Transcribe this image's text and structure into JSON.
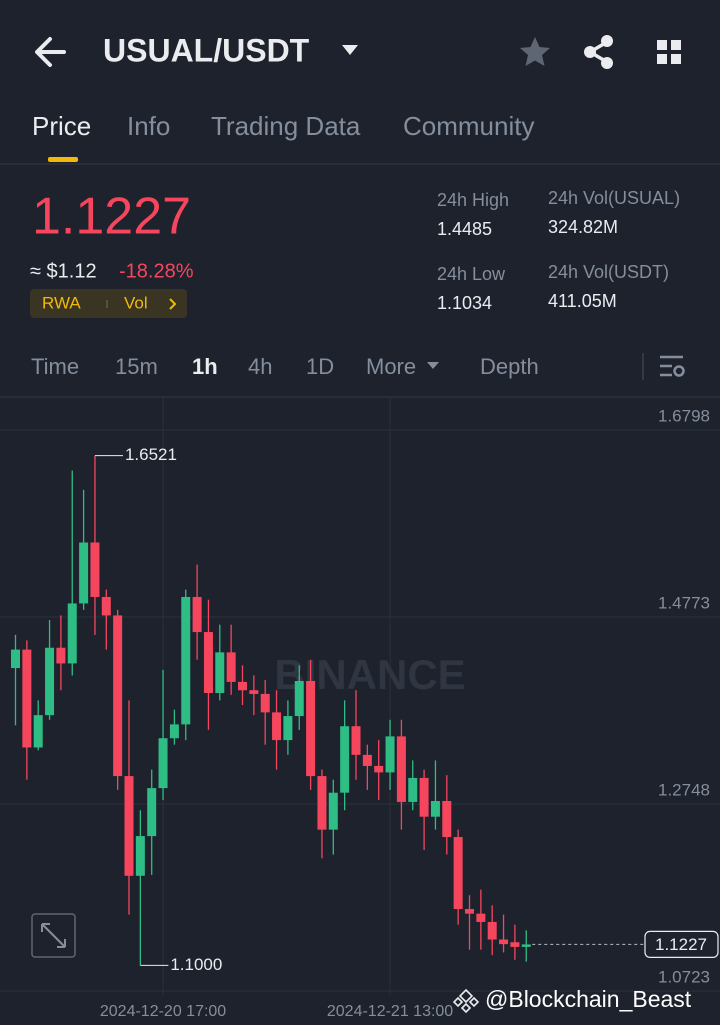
{
  "header": {
    "pair": "USUAL/USDT"
  },
  "tabs": [
    "Price",
    "Info",
    "Trading Data",
    "Community"
  ],
  "ticker": {
    "price": "1.1227",
    "usd": "≈ $1.12",
    "change": "-18.28%",
    "tags": [
      "RWA",
      "Vol"
    ]
  },
  "stats": [
    {
      "label": "24h High",
      "value": "1.4485"
    },
    {
      "label": "24h Vol(USUAL)",
      "value": "324.82M"
    },
    {
      "label": "24h Low",
      "value": "1.1034"
    },
    {
      "label": "24h Vol(USDT)",
      "value": "411.05M"
    }
  ],
  "intervals": [
    "Time",
    "15m",
    "1h",
    "4h",
    "1D",
    "More",
    "Depth"
  ],
  "chart_data": {
    "type": "candlestick",
    "categories": [
      null,
      null,
      null,
      null,
      null,
      null,
      null,
      null,
      null,
      null,
      null,
      null,
      null,
      "2024-12-20 17:00",
      null,
      null,
      null,
      null,
      null,
      null,
      null,
      null,
      null,
      null,
      null,
      null,
      null,
      null,
      null,
      null,
      null,
      null,
      null,
      "2024-12-21 13:00",
      null,
      null,
      null,
      null,
      null,
      null,
      null,
      null,
      null,
      null,
      null,
      null
    ],
    "open": [
      1.422,
      1.442,
      1.336,
      1.371,
      1.444,
      1.427,
      1.492,
      1.558,
      1.499,
      1.479,
      1.305,
      1.197,
      1.24,
      1.292,
      1.346,
      1.361,
      1.499,
      1.461,
      1.395,
      1.439,
      1.407,
      1.398,
      1.394,
      1.374,
      1.344,
      1.37,
      1.408,
      1.305,
      1.247,
      1.287,
      1.359,
      1.328,
      1.316,
      1.309,
      1.348,
      1.277,
      1.303,
      1.261,
      1.278,
      1.239,
      1.161,
      1.156,
      1.147,
      1.128,
      1.125,
      1.12
    ],
    "high": [
      1.458,
      1.452,
      1.387,
      1.474,
      1.479,
      1.636,
      1.615,
      1.6521,
      1.507,
      1.485,
      1.387,
      1.268,
      1.312,
      1.42,
      1.377,
      1.507,
      1.534,
      1.496,
      1.469,
      1.469,
      1.425,
      1.414,
      1.409,
      1.398,
      1.387,
      1.425,
      1.431,
      1.312,
      1.301,
      1.387,
      1.398,
      1.339,
      1.344,
      1.366,
      1.366,
      1.322,
      1.312,
      1.322,
      1.306,
      1.247,
      1.176,
      1.182,
      1.165,
      1.155,
      1.144,
      1.138
    ],
    "low": [
      1.36,
      1.301,
      1.333,
      1.366,
      1.398,
      1.414,
      1.485,
      1.458,
      1.442,
      1.29,
      1.155,
      1.1,
      1.198,
      1.279,
      1.339,
      1.344,
      1.431,
      1.355,
      1.387,
      1.393,
      1.382,
      1.371,
      1.339,
      1.312,
      1.328,
      1.355,
      1.29,
      1.216,
      1.22,
      1.268,
      1.301,
      1.29,
      1.279,
      1.29,
      1.247,
      1.268,
      1.225,
      1.247,
      1.22,
      1.144,
      1.117,
      1.117,
      1.111,
      1.114,
      1.106,
      1.104
    ],
    "close": [
      1.442,
      1.336,
      1.371,
      1.444,
      1.427,
      1.492,
      1.558,
      1.499,
      1.479,
      1.305,
      1.197,
      1.24,
      1.292,
      1.346,
      1.361,
      1.499,
      1.461,
      1.395,
      1.439,
      1.407,
      1.398,
      1.394,
      1.374,
      1.344,
      1.37,
      1.408,
      1.305,
      1.247,
      1.287,
      1.359,
      1.328,
      1.316,
      1.309,
      1.348,
      1.277,
      1.303,
      1.261,
      1.278,
      1.239,
      1.161,
      1.156,
      1.147,
      1.128,
      1.123,
      1.12,
      1.1227
    ],
    "up_color": "#2ebd85",
    "down_color": "#f6465d",
    "ylim": [
      1.0679,
      1.7145
    ],
    "yticks": [
      1.6798,
      1.4773,
      1.2748,
      1.0723
    ],
    "grid": true,
    "max_label": 1.6521,
    "min_label": {
      "value": 1.1,
      "label": "1.1000"
    },
    "last_price": 1.1227,
    "watermark": "BINANCE"
  },
  "watermark": "@Blockchain_Beast"
}
